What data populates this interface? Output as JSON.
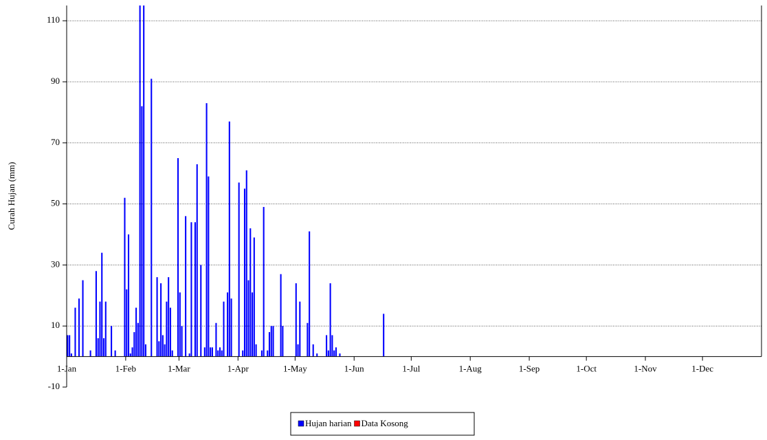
{
  "chart_data": {
    "type": "bar",
    "y_label": "Curah Hujan (mm)",
    "x": [
      0,
      1,
      2,
      4,
      6,
      8,
      12,
      15,
      16,
      17,
      18,
      19,
      20,
      23,
      25,
      30,
      31,
      32,
      33,
      34,
      35,
      36,
      37,
      38,
      39,
      40,
      41,
      44,
      47,
      48,
      49,
      50,
      51,
      52,
      53,
      54,
      55,
      58,
      59,
      60,
      62,
      64,
      65,
      67,
      68,
      70,
      72,
      73,
      74,
      75,
      76,
      78,
      79,
      80,
      81,
      82,
      84,
      85,
      86,
      90,
      92,
      93,
      94,
      95,
      96,
      97,
      98,
      99,
      102,
      103,
      105,
      106,
      107,
      108,
      112,
      113,
      120,
      121,
      122,
      126,
      127,
      129,
      131,
      136,
      137,
      138,
      139,
      140,
      141,
      143,
      166
    ],
    "series": [
      {
        "name": "Hujan harian",
        "color": "#0000ff",
        "values": [
          7,
          7,
          1,
          16,
          19,
          25,
          2,
          28,
          6,
          18,
          34,
          6,
          18,
          10,
          2,
          52,
          22,
          40,
          1,
          3,
          8,
          16,
          11,
          125,
          82,
          125,
          4,
          91,
          26,
          5,
          24,
          7,
          4,
          18,
          26,
          16,
          2,
          65,
          21,
          10,
          46,
          1,
          44,
          44,
          63,
          30,
          3,
          83,
          59,
          3,
          3,
          11,
          2,
          3,
          2,
          18,
          21,
          77,
          19,
          57,
          2,
          55,
          61,
          25,
          42,
          21,
          39,
          4,
          2,
          49,
          2,
          8,
          10,
          10,
          27,
          10,
          24,
          4,
          18,
          11,
          41,
          4,
          1,
          7,
          2,
          24,
          7,
          2,
          3,
          1,
          14
        ]
      },
      {
        "name": "Data Kosong",
        "color": "#ff0000",
        "values": [
          null,
          null,
          null,
          null,
          null,
          null,
          null,
          null,
          null,
          null,
          null,
          null,
          null,
          null,
          null,
          null,
          null,
          null,
          null,
          null,
          null,
          null,
          null,
          null,
          null,
          null,
          null,
          null,
          null,
          null,
          null,
          null,
          null,
          null,
          null,
          null,
          null,
          null,
          null,
          null,
          null,
          null,
          null,
          null,
          null,
          null,
          null,
          null,
          null,
          null,
          null,
          null,
          null,
          null,
          null,
          null,
          null,
          null,
          null,
          null,
          null,
          null,
          null,
          null,
          null,
          null,
          null,
          null,
          null,
          null,
          null,
          null,
          null,
          null,
          null,
          null,
          null,
          null,
          null,
          null,
          null,
          null,
          null,
          null,
          null,
          null,
          null,
          null,
          null,
          null,
          null
        ]
      }
    ],
    "xlim": [
      0,
      365
    ],
    "xticks": [
      {
        "value": 0,
        "label": "1-Jan"
      },
      {
        "value": 31,
        "label": "1-Feb"
      },
      {
        "value": 59,
        "label": "1-Mar"
      },
      {
        "value": 90,
        "label": "1-Apr"
      },
      {
        "value": 120,
        "label": "1-May"
      },
      {
        "value": 151,
        "label": "1-Jun"
      },
      {
        "value": 181,
        "label": "1-Jul"
      },
      {
        "value": 212,
        "label": "1-Aug"
      },
      {
        "value": 243,
        "label": "1-Sep"
      },
      {
        "value": 273,
        "label": "1-Oct"
      },
      {
        "value": 304,
        "label": "1-Nov"
      },
      {
        "value": 334,
        "label": "1-Dec"
      }
    ],
    "ylim": [
      -10,
      115
    ],
    "yticks": [
      -10,
      10,
      30,
      50,
      70,
      90,
      110
    ],
    "grid": true,
    "legend": "bottom"
  }
}
